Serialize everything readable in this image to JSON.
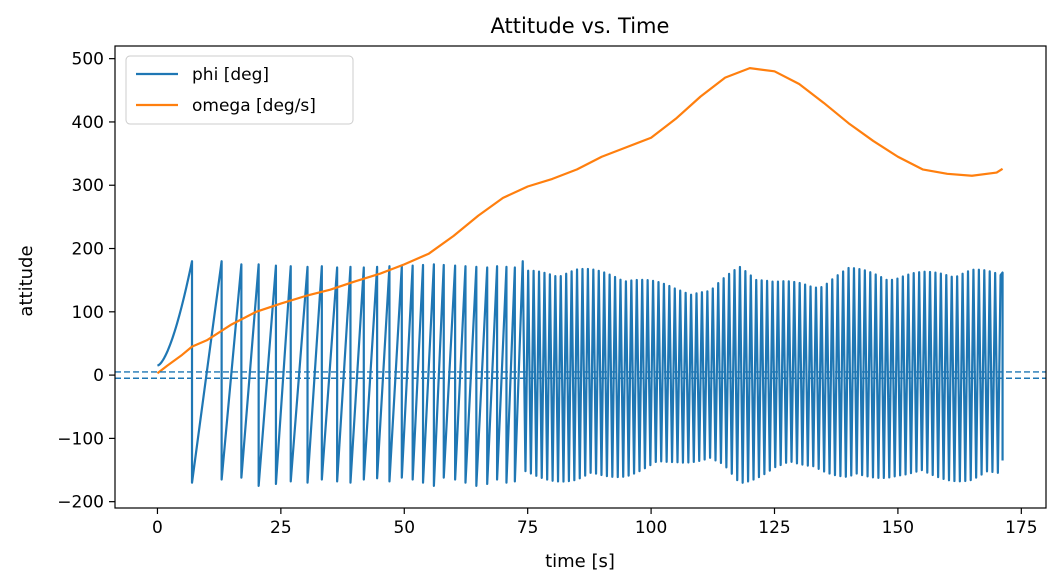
{
  "chart_data": {
    "type": "line",
    "title": "Attitude vs. Time",
    "xlabel": "time [s]",
    "ylabel": "attitude",
    "xlim": [
      -8.6,
      180.0
    ],
    "ylim": [
      -210,
      520
    ],
    "xticks": [
      0,
      25,
      50,
      75,
      100,
      125,
      150,
      175
    ],
    "yticks": [
      -200,
      -100,
      0,
      100,
      200,
      300,
      400,
      500
    ],
    "grid": false,
    "legend_position": "top-left",
    "colors": {
      "phi": "#1f77b4",
      "omega": "#ff7f0e"
    },
    "reference_lines": [
      {
        "type": "horizontal",
        "y": 5,
        "style": "dashed",
        "color": "#1f77b4"
      },
      {
        "type": "horizontal",
        "y": -5,
        "style": "dashed",
        "color": "#1f77b4"
      }
    ],
    "series": [
      {
        "name": "phi [deg]",
        "wrap_times": [
          7,
          13,
          17,
          20.5,
          24,
          27,
          30.4,
          33.3,
          36.4,
          39.1,
          41.8,
          44.5,
          47,
          49.5,
          51.7,
          53.8,
          56,
          58,
          60.3,
          62.4,
          64.6,
          66.8,
          68.8,
          70.7,
          72.4,
          74
        ],
        "peak_values": [
          180,
          180,
          175,
          175,
          173,
          172,
          171,
          172,
          170,
          171,
          170,
          171,
          172,
          172,
          173,
          174,
          175,
          174,
          173,
          172,
          171,
          170,
          172,
          171,
          170
        ],
        "trough_values": [
          -170,
          -165,
          -162,
          -175,
          -172,
          -168,
          -170,
          -165,
          -168,
          -170,
          -165,
          -163,
          -168,
          -162,
          -165,
          -170,
          -175,
          -162,
          -165,
          -170,
          -175,
          -172,
          -165,
          -170,
          -168
        ],
        "oscillation": [
          {
            "t": 75,
            "amplitude": 165
          },
          {
            "t": 85,
            "amplitude": 170
          },
          {
            "t": 95,
            "amplitude": 160
          },
          {
            "t": 105,
            "amplitude": 140
          },
          {
            "t": 112,
            "amplitude": 135
          },
          {
            "t": 118,
            "amplitude": 175
          },
          {
            "t": 125,
            "amplitude": 150
          },
          {
            "t": 133,
            "amplitude": 145
          },
          {
            "t": 140,
            "amplitude": 170
          },
          {
            "t": 150,
            "amplitude": 160
          },
          {
            "t": 158,
            "amplitude": 165
          },
          {
            "t": 165,
            "amplitude": 170
          },
          {
            "t": 171,
            "amplitude": 160
          }
        ],
        "oscillation_period": 1.1,
        "t_end": 171.2,
        "final_value": -135
      },
      {
        "name": "omega [deg/s]",
        "x": [
          0,
          2,
          5,
          7,
          10,
          15,
          20,
          25,
          30,
          35,
          40,
          45,
          50,
          55,
          60,
          65,
          70,
          75,
          80,
          85,
          90,
          95,
          100,
          105,
          110,
          115,
          120,
          125,
          130,
          135,
          140,
          145,
          150,
          155,
          160,
          165,
          170,
          171.2
        ],
        "y": [
          3,
          15,
          32,
          45,
          55,
          80,
          100,
          113,
          125,
          135,
          148,
          160,
          175,
          192,
          220,
          252,
          280,
          298,
          310,
          325,
          345,
          360,
          375,
          405,
          440,
          470,
          485,
          480,
          460,
          430,
          398,
          370,
          345,
          325,
          318,
          315,
          320,
          326
        ]
      }
    ]
  }
}
